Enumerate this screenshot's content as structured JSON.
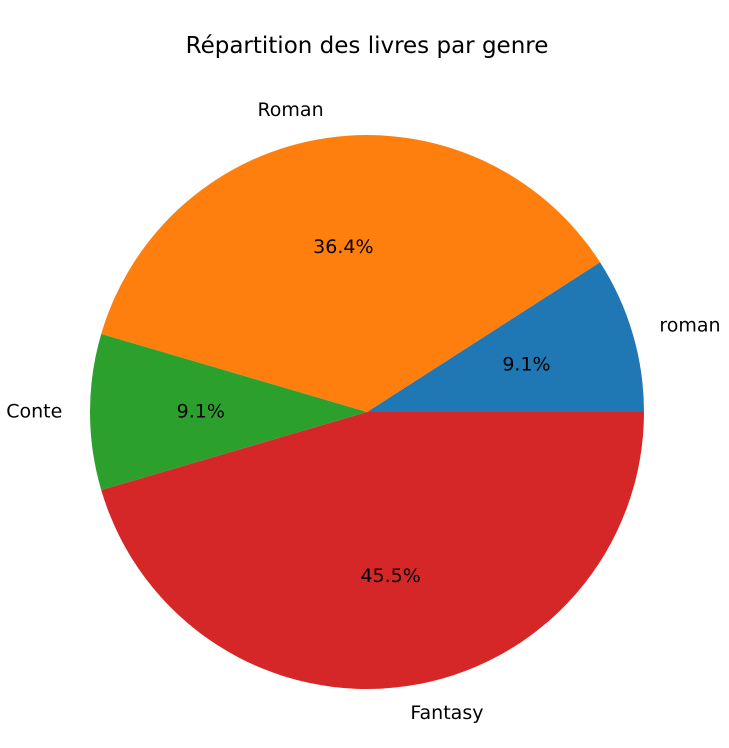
{
  "chart_data": {
    "type": "pie",
    "title": "Répartition des livres par genre",
    "start_angle_deg": 0,
    "direction": "counterclockwise",
    "slices": [
      {
        "label": "roman",
        "value": 1,
        "percent_label": "9.1%",
        "color": "#1f77b4"
      },
      {
        "label": "Roman",
        "value": 4,
        "percent_label": "36.4%",
        "color": "#ff7f0e"
      },
      {
        "label": "Conte",
        "value": 1,
        "percent_label": "9.1%",
        "color": "#2ca02c"
      },
      {
        "label": "Fantasy",
        "value": 5,
        "percent_label": "45.5%",
        "color": "#d62728"
      }
    ]
  }
}
